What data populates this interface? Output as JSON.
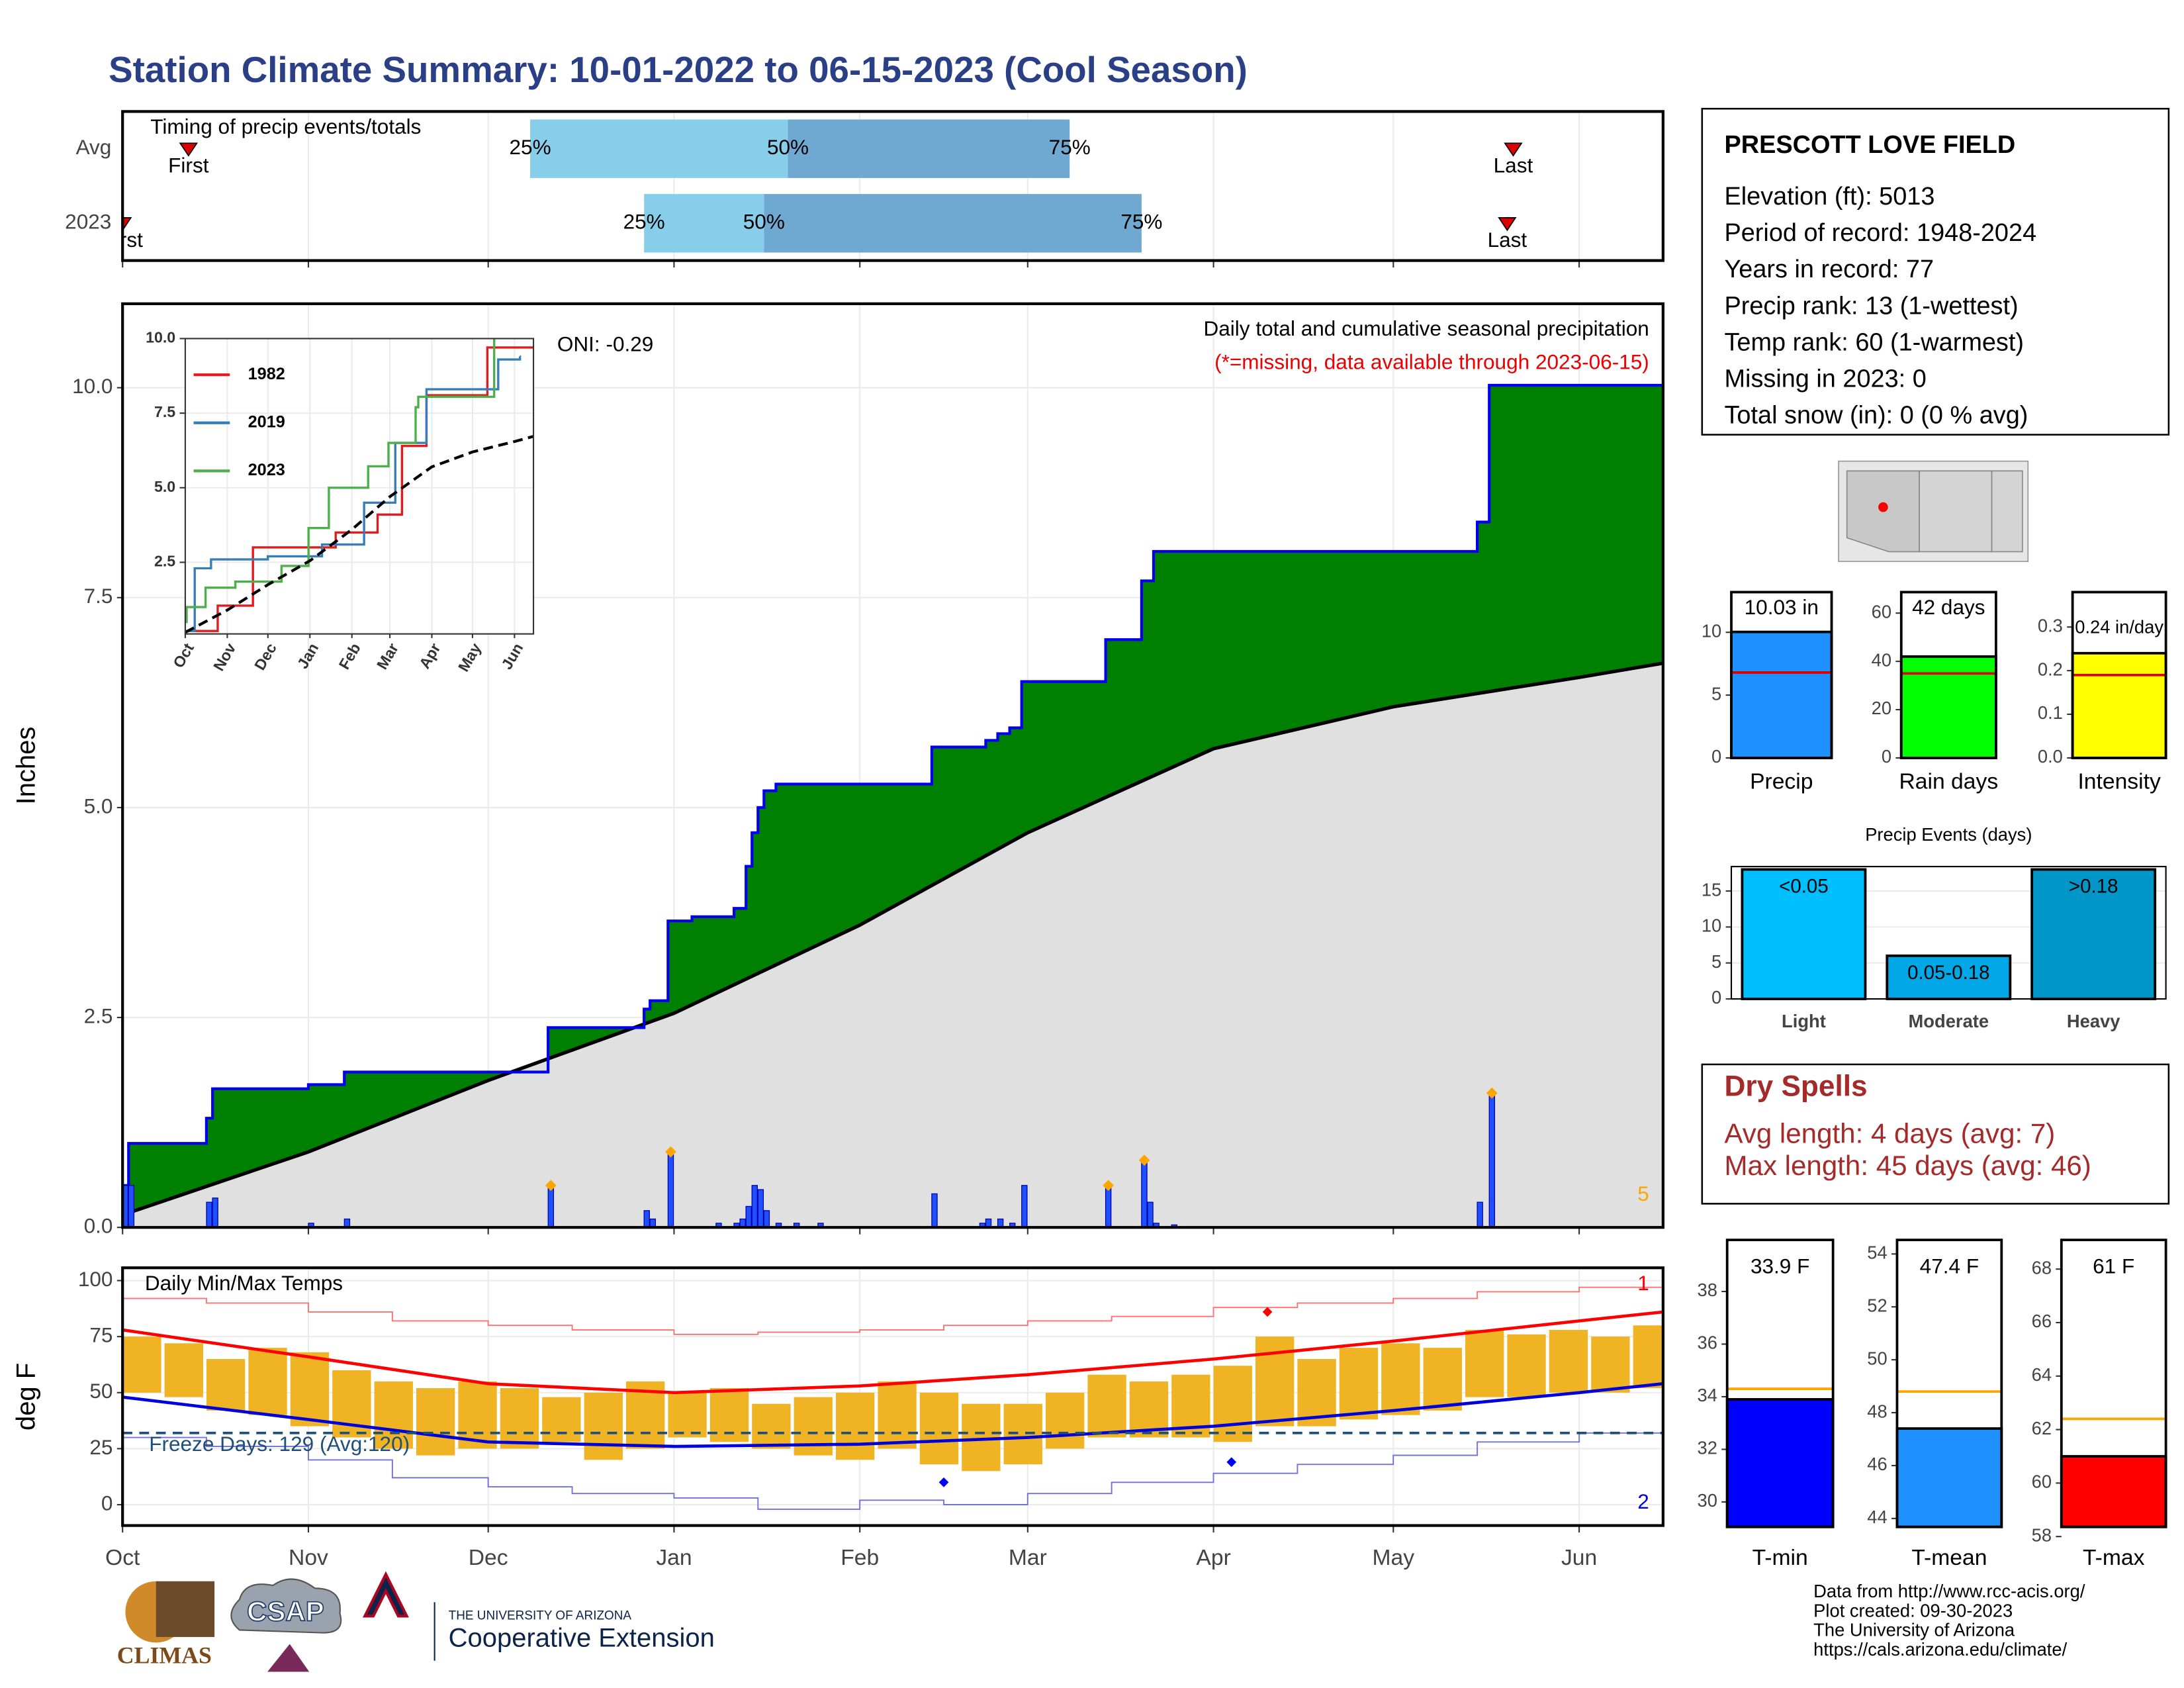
{
  "title": "Station Climate Summary: 10-01-2022 to 06-15-2023 (Cool Season)",
  "station": {
    "name": "PRESCOTT LOVE FIELD",
    "lines": [
      "Elevation (ft): 5013",
      "Period of record: 1948-2024",
      "Years in record: 77",
      "Precip rank: 13 (1-wettest)",
      "Temp rank: 60 (1-warmest)",
      "Missing in 2023: 0",
      "Total snow (in): 0 (0 % avg)"
    ]
  },
  "dry_spells": {
    "title": "Dry Spells",
    "lines": [
      "Avg length: 4 days (avg: 7)",
      "Max length: 45 days (avg: 46)"
    ]
  },
  "footer": {
    "logos": [
      "CLIMAS",
      "CSAP",
      "THE UNIVERSITY OF ARIZONA",
      "Cooperative Extension"
    ],
    "credits": [
      "Data from http://www.rcc-acis.org/",
      "Plot created: 09-30-2023",
      "The University of Arizona",
      "https://cals.arizona.edu/climate/"
    ]
  },
  "chart_data": [
    {
      "type": "timing",
      "title": "Timing of precip events/totals",
      "categories": [
        "Avg",
        "2023"
      ],
      "xlim": [
        "2022-10-01",
        "2023-06-15"
      ],
      "first": [
        "2022-10-12",
        "2022-10-01"
      ],
      "last": [
        "2023-05-21",
        "2023-05-20"
      ],
      "q25": [
        "2022-12-08",
        "2022-12-27"
      ],
      "q50": [
        "2023-01-20",
        "2023-01-16"
      ],
      "q75": [
        "2023-03-08",
        "2023-03-20"
      ],
      "first_label": "First",
      "last_label": "Last",
      "q_labels": [
        "25%",
        "50%",
        "75%"
      ],
      "colors": [
        "#87ceeb",
        "#6fa8d0"
      ],
      "marker_color": "#dd0000"
    },
    {
      "type": "cumulative",
      "ylabel": "Inches",
      "xlim": [
        "2022-10-01",
        "2023-06-15"
      ],
      "ylim": [
        0,
        11
      ],
      "yticks": [
        {
          "value": 0,
          "label": "0.0"
        },
        2.5,
        {
          "value": 5,
          "label": "5.0"
        },
        7.5,
        {
          "value": 10,
          "label": "10.0"
        }
      ],
      "annotations": {
        "oni": "ONI: -0.29",
        "desc": "Daily total and cumulative seasonal precipitation",
        "missing": "(*=missing, data available through 2023-06-15)",
        "corner": "5"
      },
      "observed": {
        "x": [
          "2022-10-01",
          "2022-10-02",
          "2022-10-15",
          "2022-10-16",
          "2022-11-01",
          "2022-11-07",
          "2022-12-11",
          "2022-12-27",
          "2022-12-28",
          "2022-12-31",
          "2023-01-04",
          "2023-01-11",
          "2023-01-13",
          "2023-01-14",
          "2023-01-15",
          "2023-01-16",
          "2023-01-18",
          "2023-02-13",
          "2023-02-22",
          "2023-02-24",
          "2023-02-26",
          "2023-02-28",
          "2023-03-14",
          "2023-03-20",
          "2023-03-22",
          "2023-05-15",
          "2023-05-17"
        ],
        "values": [
          0.5,
          1.0,
          1.3,
          1.65,
          1.7,
          1.85,
          2.38,
          2.6,
          2.7,
          3.65,
          3.7,
          3.8,
          4.3,
          4.7,
          5.0,
          5.2,
          5.28,
          5.72,
          5.8,
          5.88,
          5.95,
          6.5,
          7.0,
          7.7,
          8.05,
          8.4,
          10.03
        ],
        "color": "#0000ee",
        "fill": "#008000"
      },
      "normal": {
        "x": [
          "2022-10-01",
          "2022-11-01",
          "2022-12-01",
          "2023-01-01",
          "2023-02-01",
          "2023-03-01",
          "2023-04-01",
          "2023-05-01",
          "2023-06-01",
          "2023-06-15"
        ],
        "values": [
          0.15,
          0.9,
          1.75,
          2.55,
          3.6,
          4.7,
          5.7,
          6.2,
          6.55,
          6.72
        ],
        "fill": "#e0e0e0",
        "color": "#000000"
      },
      "daily": {
        "x": [
          "2022-10-01",
          "2022-10-02",
          "2022-10-15",
          "2022-10-16",
          "2022-11-01",
          "2022-11-07",
          "2022-12-11",
          "2022-12-27",
          "2022-12-28",
          "2022-12-31",
          "2023-01-08",
          "2023-01-11",
          "2023-01-12",
          "2023-01-13",
          "2023-01-14",
          "2023-01-15",
          "2023-01-16",
          "2023-01-18",
          "2023-01-21",
          "2023-01-25",
          "2023-02-13",
          "2023-02-21",
          "2023-02-22",
          "2023-02-24",
          "2023-02-26",
          "2023-02-28",
          "2023-03-14",
          "2023-03-20",
          "2023-03-21",
          "2023-03-22",
          "2023-03-25",
          "2023-05-15",
          "2023-05-17"
        ],
        "values": [
          0.5,
          0.5,
          0.3,
          0.35,
          0.05,
          0.1,
          0.5,
          0.2,
          0.1,
          0.9,
          0.05,
          0.05,
          0.1,
          0.25,
          0.5,
          0.45,
          0.2,
          0.05,
          0.05,
          0.05,
          0.4,
          0.05,
          0.1,
          0.1,
          0.05,
          0.5,
          0.5,
          0.8,
          0.3,
          0.05,
          0.03,
          0.3,
          1.6
        ],
        "marked": [
          false,
          false,
          false,
          false,
          false,
          false,
          true,
          false,
          false,
          true,
          false,
          false,
          false,
          false,
          false,
          false,
          false,
          false,
          false,
          false,
          false,
          false,
          false,
          false,
          false,
          false,
          true,
          true,
          false,
          false,
          false,
          false,
          true
        ],
        "color": "#1e50ff",
        "marker_color": "#ffa500"
      }
    },
    {
      "type": "line",
      "xlim": [
        "2022-10-01",
        "2023-06-15"
      ],
      "xticks": [
        {
          "value": "2022-10-01",
          "label": "Oct"
        },
        {
          "value": "2022-11-01",
          "label": "Nov"
        },
        {
          "value": "2022-12-01",
          "label": "Dec"
        },
        {
          "value": "2023-01-01",
          "label": "Jan"
        },
        {
          "value": "2023-02-01",
          "label": "Feb"
        },
        {
          "value": "2023-03-01",
          "label": "Mar"
        },
        {
          "value": "2023-04-01",
          "label": "Apr"
        },
        {
          "value": "2023-05-01",
          "label": "May"
        },
        {
          "value": "2023-06-01",
          "label": "Jun"
        }
      ],
      "ylim": [
        0.1,
        10
      ],
      "yticks": [
        2.5,
        {
          "value": 5,
          "label": "5.0"
        },
        7.5,
        {
          "value": 10,
          "label": "10.0"
        }
      ],
      "series": [
        {
          "name": "1982",
          "color": "#e41a1c",
          "x": [
            "2022-10-01",
            "2022-10-25",
            "2022-11-20",
            "2023-01-20",
            "2023-02-20",
            "2023-03-10",
            "2023-03-28",
            "2023-05-12",
            "2023-06-15"
          ],
          "values": [
            0.2,
            1.05,
            3.0,
            3.5,
            4.1,
            6.4,
            8.1,
            9.7,
            9.7
          ]
        },
        {
          "name": "2019",
          "color": "#377eb8",
          "x": [
            "2022-10-01",
            "2022-10-08",
            "2022-10-20",
            "2022-12-01",
            "2023-01-10",
            "2023-02-10",
            "2023-03-05",
            "2023-03-28",
            "2023-05-20",
            "2023-06-05"
          ],
          "values": [
            0.2,
            2.3,
            2.6,
            2.7,
            3.1,
            4.5,
            6.5,
            8.3,
            9.3,
            9.4
          ]
        },
        {
          "name": "2023",
          "color": "#4daf4a",
          "x": [
            "2022-10-01",
            "2022-10-02",
            "2022-10-16",
            "2022-11-07",
            "2022-12-11",
            "2022-12-31",
            "2023-01-15",
            "2023-02-13",
            "2023-02-28",
            "2023-03-20",
            "2023-03-22",
            "2023-05-17",
            "2023-06-15"
          ],
          "values": [
            0.5,
            1.0,
            1.65,
            1.85,
            2.38,
            3.65,
            5.0,
            5.72,
            6.5,
            7.7,
            8.05,
            10.03,
            10.03
          ]
        },
        {
          "color": "#000000",
          "dash": true,
          "x": [
            "2022-10-01",
            "2022-11-01",
            "2022-12-01",
            "2023-01-01",
            "2023-02-01",
            "2023-03-01",
            "2023-04-01",
            "2023-05-01",
            "2023-06-01",
            "2023-06-15"
          ],
          "values": [
            0.15,
            0.9,
            1.75,
            2.55,
            3.6,
            4.7,
            5.7,
            6.2,
            6.55,
            6.72
          ]
        }
      ]
    },
    {
      "type": "temperature",
      "title": "Daily Min/Max Temps",
      "ylabel": "deg F",
      "xlim": [
        "2022-10-01",
        "2023-06-15"
      ],
      "xticks": [
        {
          "value": "2022-10-01",
          "label": "Oct"
        },
        {
          "value": "2022-11-01",
          "label": "Nov"
        },
        {
          "value": "2022-12-01",
          "label": "Dec"
        },
        {
          "value": "2023-01-01",
          "label": "Jan"
        },
        {
          "value": "2023-02-01",
          "label": "Feb"
        },
        {
          "value": "2023-03-01",
          "label": "Mar"
        },
        {
          "value": "2023-04-01",
          "label": "Apr"
        },
        {
          "value": "2023-05-01",
          "label": "May"
        },
        {
          "value": "2023-06-01",
          "label": "Jun"
        }
      ],
      "ylim": [
        -9.3,
        105.7
      ],
      "yticks": [
        0,
        25,
        50,
        75,
        100
      ],
      "observed": {
        "x": [
          "2022-10-01",
          "2022-10-08",
          "2022-10-15",
          "2022-10-22",
          "2022-10-29",
          "2022-11-05",
          "2022-11-12",
          "2022-11-19",
          "2022-11-26",
          "2022-12-03",
          "2022-12-10",
          "2022-12-17",
          "2022-12-24",
          "2022-12-31",
          "2023-01-07",
          "2023-01-14",
          "2023-01-21",
          "2023-01-28",
          "2023-02-04",
          "2023-02-11",
          "2023-02-18",
          "2023-02-25",
          "2023-03-04",
          "2023-03-11",
          "2023-03-18",
          "2023-03-25",
          "2023-04-01",
          "2023-04-08",
          "2023-04-15",
          "2023-04-22",
          "2023-04-29",
          "2023-05-06",
          "2023-05-13",
          "2023-05-20",
          "2023-05-27",
          "2023-06-03",
          "2023-06-10"
        ],
        "max": [
          75,
          72,
          65,
          70,
          68,
          60,
          55,
          52,
          55,
          52,
          48,
          50,
          55,
          50,
          52,
          45,
          48,
          50,
          55,
          50,
          45,
          45,
          50,
          58,
          55,
          58,
          62,
          75,
          65,
          70,
          72,
          70,
          78,
          76,
          78,
          75,
          80
        ],
        "min": [
          50,
          48,
          42,
          40,
          35,
          30,
          25,
          22,
          25,
          25,
          28,
          20,
          25,
          30,
          28,
          25,
          22,
          20,
          25,
          18,
          15,
          18,
          25,
          30,
          30,
          30,
          28,
          35,
          35,
          38,
          40,
          42,
          48,
          48,
          50,
          50,
          52
        ],
        "color": "#f0b323"
      },
      "normal_max": {
        "x": [
          "2022-10-01",
          "2022-11-01",
          "2022-12-01",
          "2023-01-01",
          "2023-02-01",
          "2023-03-01",
          "2023-04-01",
          "2023-05-01",
          "2023-06-01",
          "2023-06-15"
        ],
        "values": [
          78,
          66,
          54,
          50,
          53,
          58,
          65,
          73,
          82,
          86
        ],
        "color": "#ff0000"
      },
      "normal_min": {
        "x": [
          "2022-10-01",
          "2022-11-01",
          "2022-12-01",
          "2023-01-01",
          "2023-02-01",
          "2023-03-01",
          "2023-04-01",
          "2023-05-01",
          "2023-06-01",
          "2023-06-15"
        ],
        "values": [
          48,
          38,
          28,
          26,
          27,
          30,
          35,
          42,
          50,
          54
        ],
        "color": "#0000dd"
      },
      "record_max": {
        "x": [
          "2022-10-01",
          "2022-10-15",
          "2022-11-01",
          "2022-11-15",
          "2022-12-01",
          "2022-12-15",
          "2023-01-01",
          "2023-01-15",
          "2023-02-01",
          "2023-02-15",
          "2023-03-01",
          "2023-03-15",
          "2023-04-01",
          "2023-04-15",
          "2023-05-01",
          "2023-05-15",
          "2023-06-01",
          "2023-06-15"
        ],
        "values": [
          92,
          90,
          86,
          82,
          80,
          78,
          76,
          77,
          78,
          80,
          82,
          84,
          88,
          90,
          92,
          95,
          97,
          99
        ],
        "color": "#ff7070"
      },
      "record_min": {
        "x": [
          "2022-10-01",
          "2022-10-15",
          "2022-11-01",
          "2022-11-15",
          "2022-12-01",
          "2022-12-15",
          "2023-01-01",
          "2023-01-15",
          "2023-02-01",
          "2023-02-15",
          "2023-03-01",
          "2023-03-15",
          "2023-04-01",
          "2023-04-15",
          "2023-05-01",
          "2023-05-15",
          "2023-06-01",
          "2023-06-15"
        ],
        "values": [
          30,
          26,
          20,
          12,
          8,
          5,
          3,
          -2,
          2,
          0,
          5,
          10,
          14,
          18,
          22,
          28,
          32,
          38
        ],
        "color": "#7070e0"
      },
      "freeze": {
        "value": 32,
        "label": "Freeze Days: 129 (Avg:120)",
        "color": "#1f4e79"
      },
      "extremes": {
        "x": [
          "2023-04-10",
          "2023-02-15",
          "2023-04-04"
        ],
        "values": [
          86,
          10,
          19
        ],
        "colors": [
          "#ff0000",
          "#0000ff",
          "#0000ff"
        ]
      },
      "corner_labels": [
        "1",
        "2"
      ],
      "corner_colors": [
        "#ff0000",
        "#0000dd"
      ]
    },
    {
      "type": "bar",
      "categories": [
        "Precip"
      ],
      "values": [
        10.03
      ],
      "value_labels": [
        "10.03 in"
      ],
      "avg": [
        6.8
      ],
      "colors": [
        "#1e90ff"
      ],
      "avg_color": "#dd0000",
      "ylim": [
        0,
        13.2
      ],
      "yticks": [
        0,
        5,
        10
      ]
    },
    {
      "type": "bar",
      "categories": [
        "Rain days"
      ],
      "values": [
        42
      ],
      "value_labels": [
        "42 days"
      ],
      "avg": [
        35
      ],
      "colors": [
        "#00ff00"
      ],
      "avg_color": "#dd0000",
      "ylim": [
        0,
        68.7
      ],
      "yticks": [
        0,
        20,
        40,
        60
      ]
    },
    {
      "type": "bar",
      "categories": [
        "Intensity"
      ],
      "values": [
        0.24
      ],
      "value_labels": [
        "0.24 in/day"
      ],
      "avg": [
        0.19
      ],
      "colors": [
        "#ffff00"
      ],
      "avg_color": "#dd0000",
      "ylim": [
        0,
        0.38
      ],
      "yticks": [
        {
          "value": 0,
          "label": "0.0"
        },
        0.1,
        0.2,
        0.3
      ]
    },
    {
      "type": "bar",
      "title": "Precip Events (days)",
      "categories": [
        "Light",
        "Moderate",
        "Heavy"
      ],
      "values": [
        18,
        6,
        18
      ],
      "bin_labels": [
        "<0.05",
        "0.05-0.18",
        ">0.18"
      ],
      "colors": [
        "#00bfff",
        "#00a7e6",
        "#0097c8"
      ],
      "ylim": [
        0,
        18.4
      ],
      "yticks": [
        0,
        5,
        10,
        15
      ],
      "grid": true
    },
    {
      "type": "bar",
      "categories": [
        "T-min"
      ],
      "values": [
        33.9
      ],
      "value_labels": [
        "33.9 F"
      ],
      "avg": [
        34.3
      ],
      "colors": [
        "#0000ff"
      ],
      "avg_color": "#ffa500",
      "ylim": [
        29.05,
        39.96
      ],
      "yticks": [
        30,
        32,
        34,
        36,
        38
      ]
    },
    {
      "type": "bar",
      "categories": [
        "T-mean"
      ],
      "values": [
        47.4
      ],
      "value_labels": [
        "47.4 F"
      ],
      "avg": [
        48.8
      ],
      "colors": [
        "#1e90ff"
      ],
      "avg_color": "#ffa500",
      "ylim": [
        43.68,
        54.53
      ],
      "yticks": [
        44,
        46,
        48,
        50,
        52,
        54
      ]
    },
    {
      "type": "bar",
      "categories": [
        "T-max"
      ],
      "values": [
        61
      ],
      "value_labels": [
        "61 F"
      ],
      "avg": [
        62.4
      ],
      "colors": [
        "#ff0000"
      ],
      "avg_color": "#ffa500",
      "ylim": [
        58.36,
        69.09
      ],
      "yticks": [
        58,
        60,
        62,
        64,
        66,
        68
      ]
    }
  ]
}
